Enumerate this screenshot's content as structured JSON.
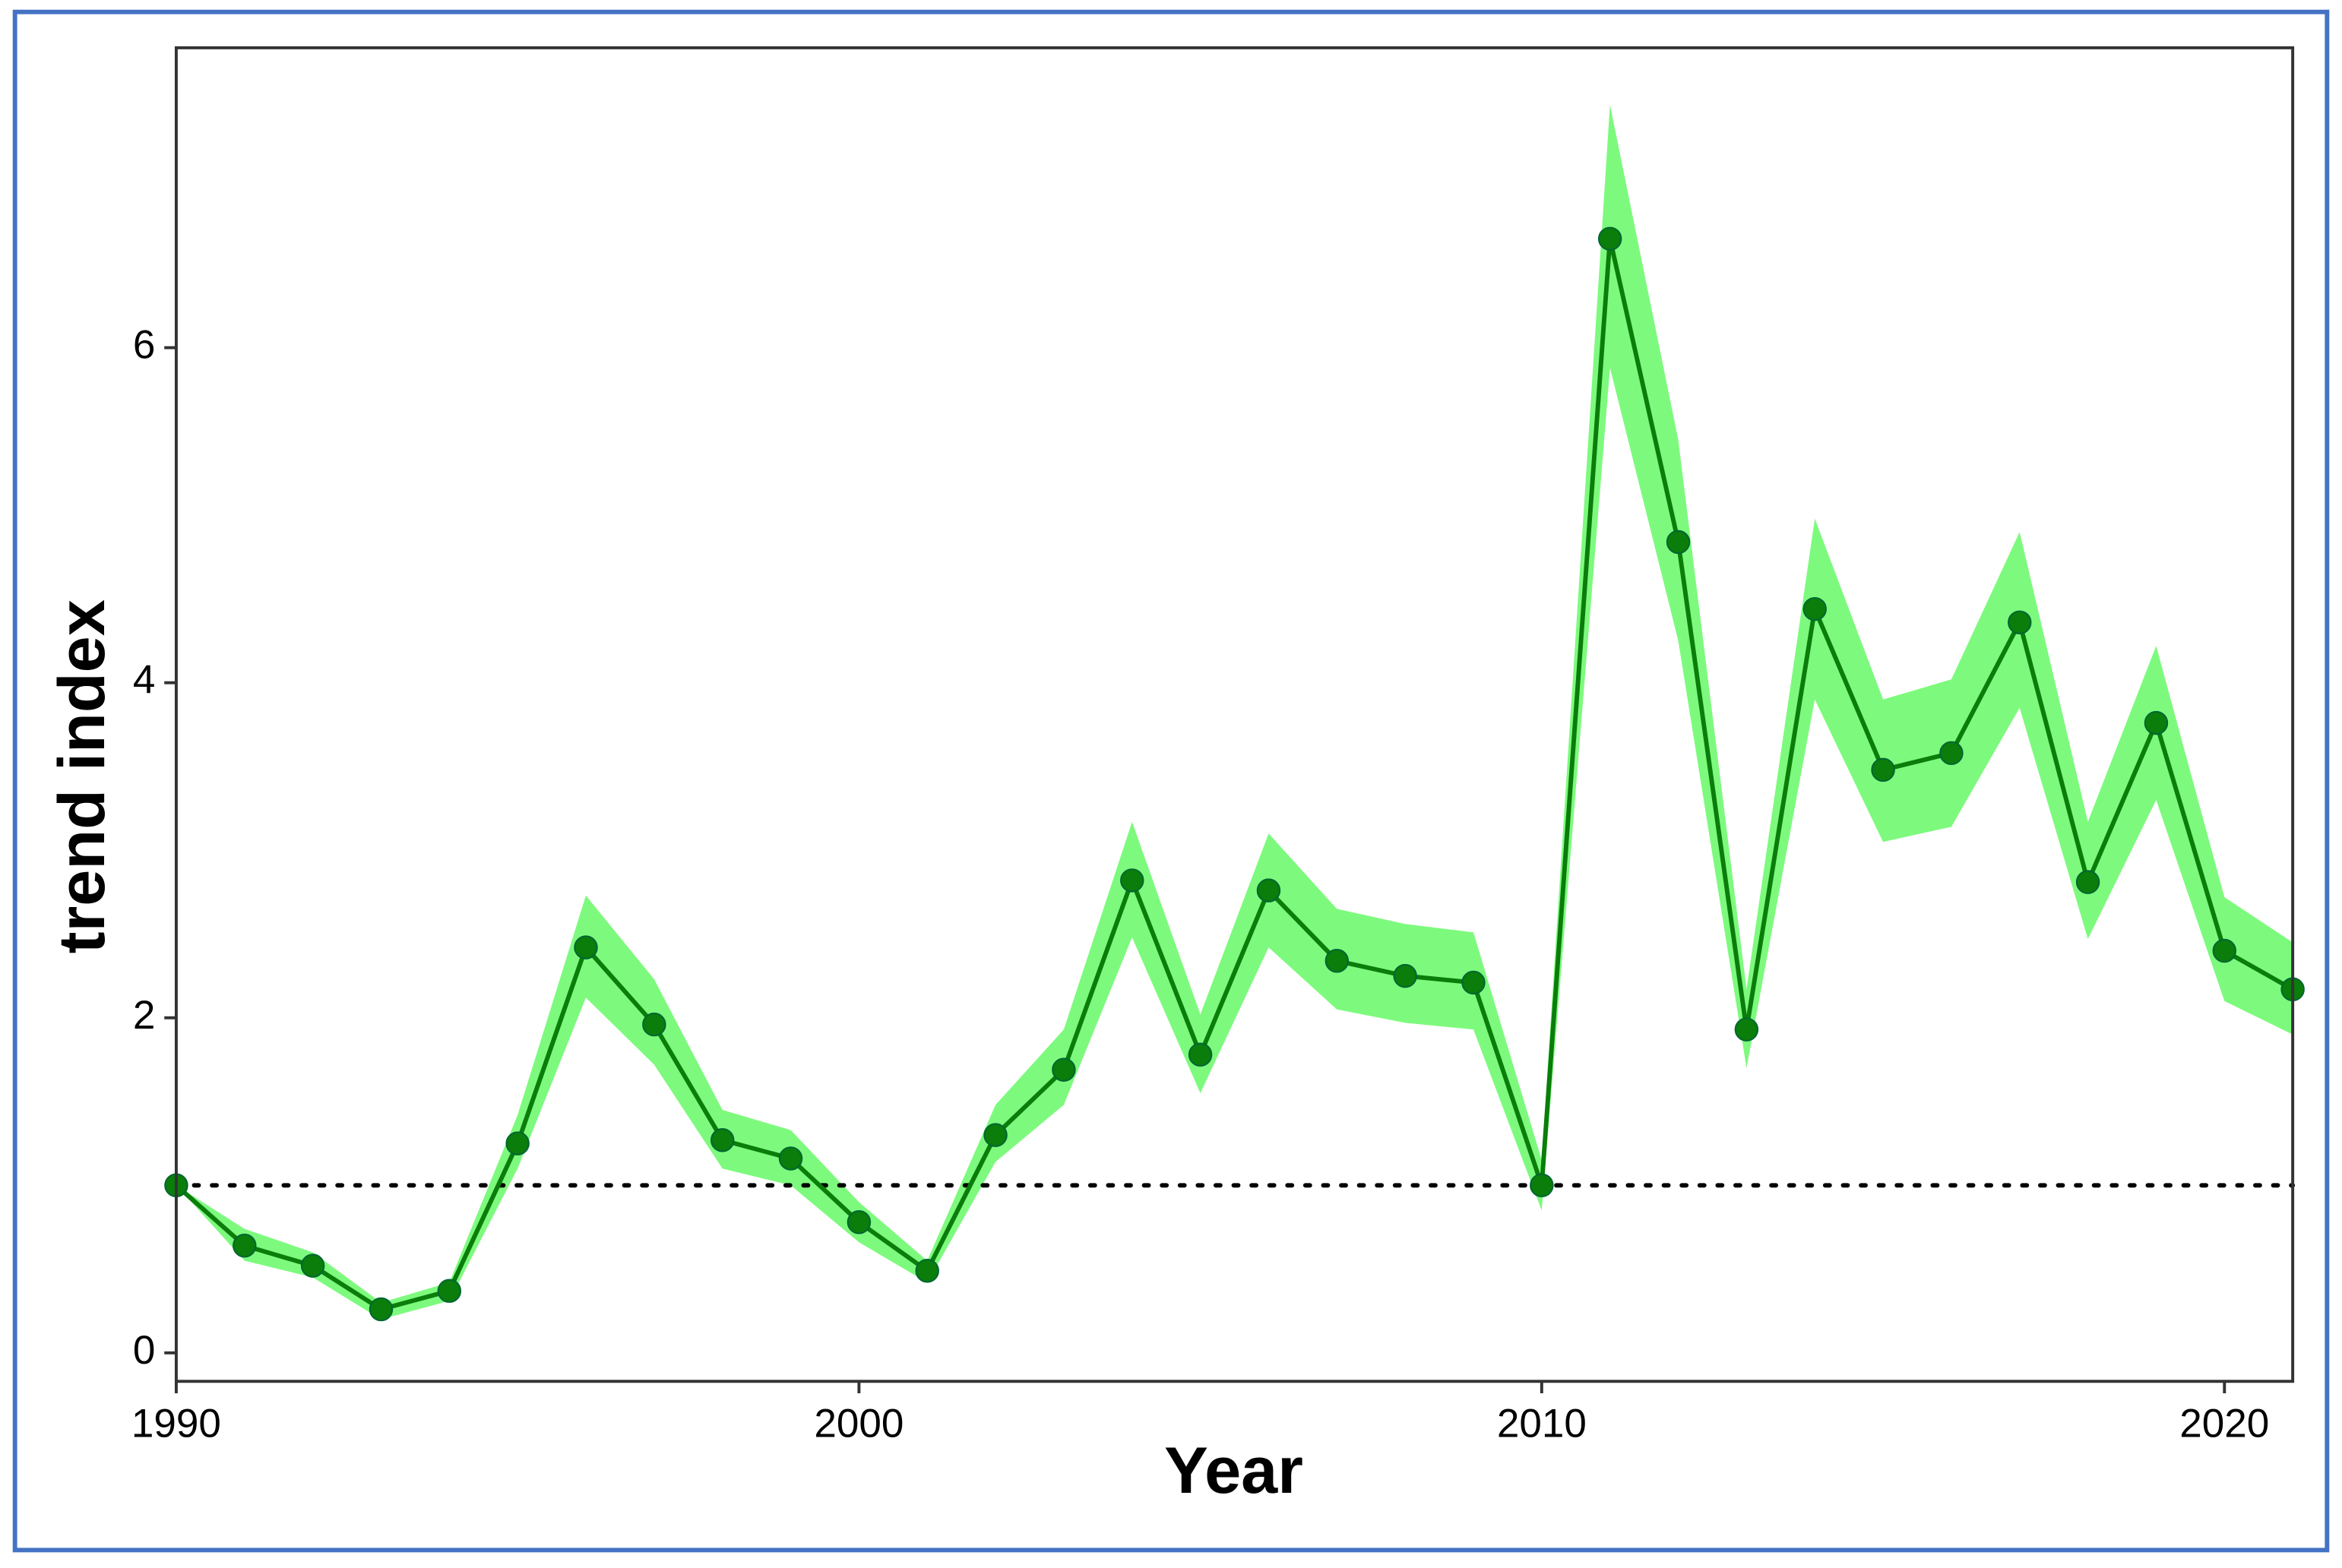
{
  "chart_data": {
    "type": "line",
    "x_label": "Year",
    "y_label": "trend index",
    "x": [
      1990,
      1991,
      1992,
      1993,
      1994,
      1995,
      1996,
      1997,
      1998,
      1999,
      2000,
      2001,
      2002,
      2003,
      2004,
      2005,
      2006,
      2007,
      2008,
      2009,
      2010,
      2011,
      2012,
      2013,
      2014,
      2015,
      2016,
      2017,
      2018,
      2019,
      2020,
      2021
    ],
    "values": [
      1.0,
      0.64,
      0.52,
      0.26,
      0.37,
      1.25,
      2.42,
      1.96,
      1.27,
      1.16,
      0.78,
      0.49,
      1.3,
      1.69,
      2.82,
      1.78,
      2.76,
      2.34,
      2.25,
      2.21,
      1.0,
      6.65,
      4.84,
      1.93,
      4.44,
      3.48,
      3.58,
      4.36,
      2.81,
      3.76,
      2.4,
      2.17
    ],
    "lower": [
      1.0,
      0.55,
      0.45,
      0.2,
      0.31,
      1.1,
      2.12,
      1.72,
      1.1,
      1.0,
      0.66,
      0.42,
      1.14,
      1.48,
      2.48,
      1.55,
      2.42,
      2.05,
      1.97,
      1.93,
      0.85,
      5.88,
      4.25,
      1.7,
      3.9,
      3.05,
      3.14,
      3.85,
      2.47,
      3.3,
      2.1,
      1.9
    ],
    "upper": [
      1.0,
      0.74,
      0.6,
      0.3,
      0.42,
      1.42,
      2.73,
      2.23,
      1.45,
      1.33,
      0.9,
      0.55,
      1.48,
      1.93,
      3.17,
      2.02,
      3.1,
      2.65,
      2.56,
      2.51,
      1.15,
      7.45,
      5.45,
      2.17,
      4.98,
      3.9,
      4.02,
      4.9,
      3.17,
      4.22,
      2.72,
      2.45
    ],
    "color": "#0a7d0a",
    "band_color": "#7dfa7d",
    "reference_line": 1,
    "xlim": [
      1990,
      2021
    ],
    "ylim": [
      -0.17,
      7.79
    ],
    "xticks": [
      1990,
      2000,
      2010,
      2020
    ],
    "yticks": [
      0,
      2,
      4,
      6
    ]
  }
}
